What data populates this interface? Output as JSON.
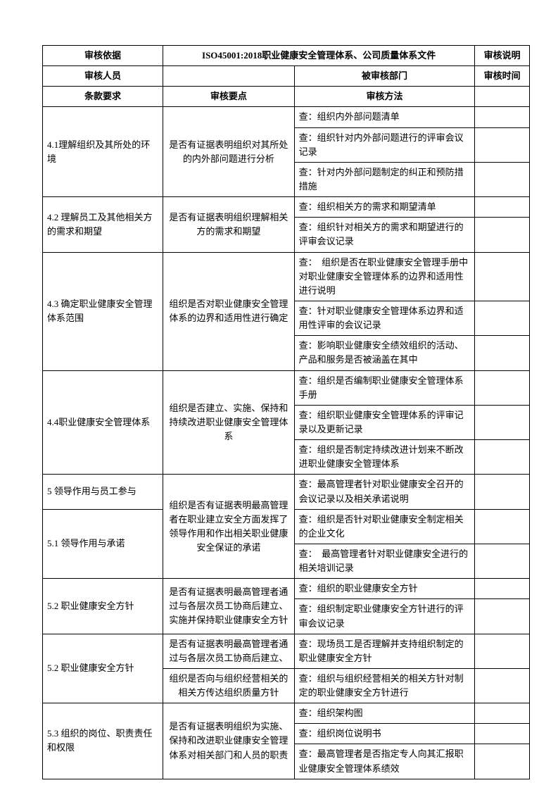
{
  "header": {
    "audit_basis_label": "审核依据",
    "audit_basis_value": "ISO45001:2018职业健康安全管理体系、公司质量体系文件",
    "audit_desc_label": "审核说明",
    "auditor_label": "审核人员",
    "auditor_value": "",
    "dept_label": "被审核部门",
    "dept_value": "",
    "time_label": "审核时间",
    "time_value": ""
  },
  "columns": {
    "c1": "条款要求",
    "c2": "审核要点",
    "c3": "审核方法",
    "c4": ""
  },
  "rows": {
    "r4_1": {
      "req": "4.1理解组织及其所处的环境",
      "point": "是否有证据表明组织对其所处的内外部问题进行分析",
      "m1": "查：组织内外部问题清单",
      "m2": "查：组织针对内外部问题进行的评审会议记录",
      "m3": "查：针对内外部问题制定的纠正和预防措措施"
    },
    "r4_2": {
      "req": "4.2 理解员工及其他相关方的需求和期望",
      "point": "是否有证据表明组织理解相关方的需求和期望",
      "m1": "查：组织相关方的需求和期望清单",
      "m2": "查：组织针对相关方的需求和期望进行的评审会议记录"
    },
    "r4_3": {
      "req": "4.3 确定职业健康安全管理体系范围",
      "point": "组织是否对职业健康安全管理体系的边界和适用性进行确定",
      "m1": "查：　组织是否在职业健康安全管理手册中对职业健康安全管理体系的边界和适用性进行说明",
      "m2": "查：针对职业健康安全管理体系边界和适用性评审的会议记录",
      "m3": "查：影响职业健康安全绩效组织的活动、产品和服务是否被涵盖在其中"
    },
    "r4_4": {
      "req": "4.4职业健康安全管理体系",
      "point": "组织是否建立、实施、保持和持续改进职业健康安全管理体系",
      "m1": "查：组织是否编制职业健康安全管理体系手册",
      "m2": "查：组织职业健康安全管理体系的评审记录以及更新记录",
      "m3": "查：组织是否制定持续改进计划来不断改进职业健康安全管理体系"
    },
    "r5": {
      "req": "5 领导作用与员工参与",
      "point_shared": "组织是否有证据表明最高管理者在职业建立安全方面发挥了领导作用和作出相关职业健康安全保证的承诺",
      "m1": "查：最高管理者针对职业健康安全召开的会议记录以及相关承诺说明"
    },
    "r5_1": {
      "req": "5.1 领导作用与承诺",
      "m1": "查：组织是否针对职业健康安全制定相关的企业文化",
      "m2": "查：　最高管理者针对职业健康安全进行的相关培训记录"
    },
    "r5_2a": {
      "req": "5.2 职业健康安全方针",
      "point": "是否有证据表明最高管理者通过与各层次员工协商后建立、实施并保持职业健康安全方针",
      "m1": "查：组织的职业健康安全方针",
      "m2": "查：组织制定职业健康安全方针进行的评审会议记录"
    },
    "r5_2b": {
      "req": "5.2 职业健康安全方针",
      "point1": "是否有证据表明最高管理者通过与各层次员工协商后建立、",
      "point2": "组织是否向与组织经营相关的相关方传达组织质量方针",
      "m1": "查：现场员工是否理解并支持组织制定的职业健康安全方针",
      "m2": "查：组织与组织经营相关的相关方针对制定的职业健康安全方针进行"
    },
    "r5_3": {
      "req": "5.3 组织的岗位、职责责任和权限",
      "point": "是否有证据表明组织为实施、保持和改进职业健康安全管理体系对相关部门和人员的职责",
      "m1": "查：组织架构图",
      "m2": "查：组织岗位说明书",
      "m3": "查：最高管理者是否指定专人向其汇报职业健康安全管理体系绩效"
    }
  }
}
